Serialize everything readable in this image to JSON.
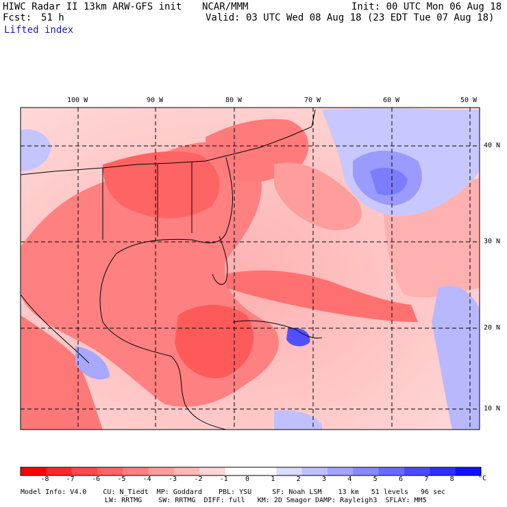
{
  "header": {
    "title": "HIWC Radar II 13km ARW-GFS init",
    "source": "NCAR/MMM",
    "init": "Init: 00 UTC Mon 06 Aug 18",
    "forecast_label": "Fcst:",
    "forecast_value": "51 h",
    "valid": "Valid: 03 UTC Wed 08 Aug 18 (23 EDT Tue 07 Aug 18)",
    "field": "Lifted index"
  },
  "map": {
    "lon_labels": [
      "100 W",
      "90 W",
      "80 W",
      "70 W",
      "60 W",
      "50 W"
    ],
    "lat_labels": [
      "40 N",
      "30 N",
      "20 N",
      "10 N"
    ],
    "colors": {
      "strong_neg": "#ff2020",
      "neutral": "#ffffff",
      "strong_pos": "#1010e0"
    }
  },
  "colorbar": {
    "labels": [
      "-8",
      "-7",
      "-6",
      "-5",
      "-4",
      "-3",
      "-2",
      "-1",
      "0",
      "1",
      "2",
      "3",
      "4",
      "5",
      "6",
      "7",
      "8"
    ],
    "unit": "°C",
    "colors": [
      "#ff0000",
      "#ff2828",
      "#ff4848",
      "#ff6464",
      "#ff8080",
      "#ff9c9c",
      "#ffb8b8",
      "#ffd6d6",
      "#ffffff",
      "#ffffff",
      "#dcdcff",
      "#c0c0ff",
      "#a4a4ff",
      "#8888ff",
      "#6a6aff",
      "#4c4cff",
      "#2e2eff",
      "#1010ff"
    ]
  },
  "footer": {
    "line1": "Model Info: V4.0    CU: N_Tiedt  MP: Goddard    PBL: YSU     SF: Noah LSM    13 km   51 levels   96 sec",
    "line2": "LW: RRTMG    SW: RRTMG  DIFF: full   KM: 2D Smagor DAMP: Rayleigh3  SFLAY: MM5"
  }
}
